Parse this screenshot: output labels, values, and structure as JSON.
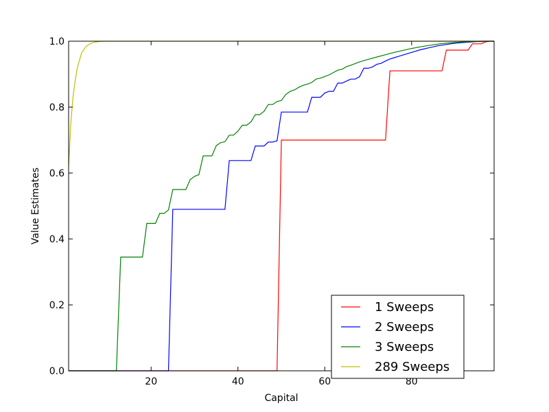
{
  "chart_data": {
    "type": "line",
    "title": "",
    "xlabel": "Capital",
    "ylabel": "Value Estimates",
    "xlim": [
      1,
      99
    ],
    "ylim": [
      0.0,
      1.0
    ],
    "xticks": [
      20,
      40,
      60,
      80
    ],
    "xtick_labels": [
      "20",
      "40",
      "60",
      "80"
    ],
    "yticks": [
      0.0,
      0.2,
      0.4,
      0.6,
      0.8,
      1.0
    ],
    "ytick_labels": [
      "0.0",
      "0.2",
      "0.4",
      "0.6",
      "0.8",
      "1.0"
    ],
    "grid": false,
    "legend_position": "lower-right",
    "series": [
      {
        "name": "1 Sweeps",
        "color": "#ff0000",
        "x": [
          1,
          49,
          50,
          74,
          75,
          87,
          88,
          93,
          94,
          96,
          97,
          98,
          99
        ],
        "y": [
          0.0,
          0.0,
          0.7,
          0.7,
          0.91,
          0.91,
          0.973,
          0.973,
          0.992,
          0.992,
          0.998,
          1.0,
          1.0
        ]
      },
      {
        "name": "2 Sweeps",
        "color": "#0000ff",
        "x": [
          1,
          24,
          25,
          37,
          38,
          43,
          44,
          46,
          47,
          48,
          49,
          50,
          56,
          57,
          59,
          60,
          61,
          62,
          63,
          64,
          66,
          67,
          68,
          69,
          70,
          71,
          72,
          73,
          74,
          75,
          76,
          77,
          78,
          79,
          80,
          81,
          82,
          83,
          84,
          85,
          86,
          87,
          88,
          89,
          90,
          91,
          92,
          93,
          94,
          95,
          96,
          97,
          98,
          99
        ],
        "y": [
          0.0,
          0.0,
          0.49,
          0.49,
          0.638,
          0.638,
          0.682,
          0.682,
          0.694,
          0.694,
          0.698,
          0.785,
          0.785,
          0.83,
          0.83,
          0.843,
          0.848,
          0.848,
          0.873,
          0.873,
          0.885,
          0.885,
          0.892,
          0.918,
          0.918,
          0.922,
          0.93,
          0.933,
          0.94,
          0.946,
          0.95,
          0.954,
          0.958,
          0.962,
          0.966,
          0.97,
          0.974,
          0.977,
          0.98,
          0.983,
          0.986,
          0.988,
          0.99,
          0.992,
          0.994,
          0.995,
          0.996,
          0.997,
          0.998,
          0.999,
          0.999,
          1.0,
          1.0,
          1.0
        ]
      },
      {
        "name": "3 Sweeps",
        "color": "#008000",
        "x": [
          1,
          12,
          13,
          18,
          19,
          20,
          21,
          22,
          23,
          24,
          25,
          26,
          27,
          28,
          29,
          30,
          31,
          32,
          33,
          34,
          35,
          36,
          37,
          38,
          39,
          40,
          41,
          42,
          43,
          44,
          45,
          46,
          47,
          48,
          49,
          50,
          51,
          52,
          53,
          54,
          55,
          56,
          57,
          58,
          59,
          60,
          61,
          62,
          63,
          64,
          65,
          66,
          67,
          68,
          69,
          70,
          72,
          74,
          76,
          78,
          80,
          82,
          84,
          86,
          88,
          90,
          92,
          94,
          96,
          99
        ],
        "y": [
          0.0,
          0.0,
          0.345,
          0.345,
          0.447,
          0.447,
          0.447,
          0.478,
          0.478,
          0.488,
          0.55,
          0.55,
          0.55,
          0.55,
          0.58,
          0.59,
          0.595,
          0.652,
          0.652,
          0.652,
          0.683,
          0.692,
          0.695,
          0.715,
          0.715,
          0.727,
          0.745,
          0.745,
          0.755,
          0.777,
          0.777,
          0.787,
          0.808,
          0.808,
          0.817,
          0.82,
          0.838,
          0.848,
          0.852,
          0.86,
          0.866,
          0.87,
          0.875,
          0.885,
          0.888,
          0.893,
          0.898,
          0.905,
          0.912,
          0.915,
          0.923,
          0.927,
          0.932,
          0.937,
          0.941,
          0.945,
          0.952,
          0.959,
          0.966,
          0.972,
          0.978,
          0.983,
          0.987,
          0.991,
          0.994,
          0.996,
          0.998,
          0.999,
          1.0,
          1.0
        ]
      },
      {
        "name": "289 Sweeps",
        "color": "#bfbf00",
        "x": [
          1,
          1.5,
          2,
          2.5,
          3,
          4,
          5,
          6,
          7,
          8,
          9,
          10,
          12,
          99
        ],
        "y": [
          0.62,
          0.75,
          0.83,
          0.88,
          0.92,
          0.965,
          0.984,
          0.993,
          0.997,
          0.999,
          1.0,
          1.0,
          1.0,
          1.0
        ]
      }
    ]
  }
}
